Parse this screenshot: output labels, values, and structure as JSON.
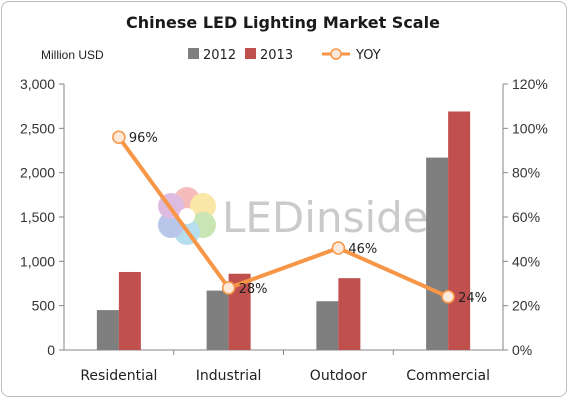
{
  "chart_data": {
    "type": "bar",
    "title": "Chinese LED Lighting Market Scale",
    "unit_label": "Million USD",
    "categories": [
      "Residential",
      "Industrial",
      "Outdoor",
      "Commercial"
    ],
    "series": [
      {
        "name": "2012",
        "type": "bar",
        "axis": "left",
        "color": "#7f7f7f",
        "values": [
          450,
          670,
          550,
          2170
        ]
      },
      {
        "name": "2013",
        "type": "bar",
        "axis": "left",
        "color": "#c0504d",
        "values": [
          880,
          860,
          810,
          2690
        ]
      },
      {
        "name": "YOY",
        "type": "line",
        "axis": "right",
        "color": "#f79646",
        "values": [
          0.96,
          0.28,
          0.46,
          0.24
        ]
      }
    ],
    "data_labels": [
      "96%",
      "28%",
      "46%",
      "24%"
    ],
    "y_left": {
      "min": 0,
      "max": 3000,
      "ticks": [
        "0",
        "500",
        "1,000",
        "1,500",
        "2,000",
        "2,500",
        "3,000"
      ]
    },
    "y_right": {
      "min": 0,
      "max": 1.2,
      "ticks": [
        "0%",
        "20%",
        "40%",
        "60%",
        "80%",
        "100%",
        "120%"
      ]
    },
    "legend_position": "top",
    "grid": false,
    "watermark": "LEDinside"
  }
}
